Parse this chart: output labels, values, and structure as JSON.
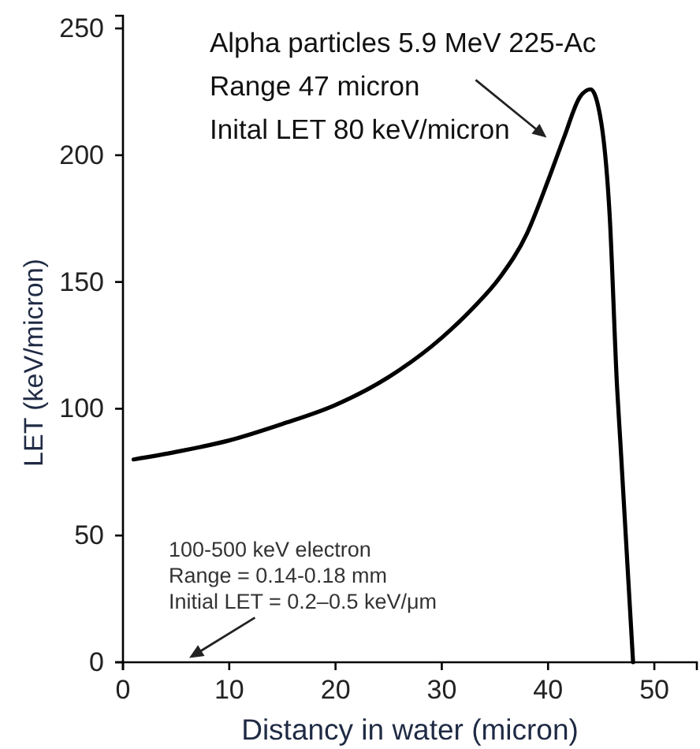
{
  "chart_data": {
    "type": "line",
    "xlabel": "Distancy in water (micron)",
    "ylabel": "LET (keV/micron)",
    "x": [
      1,
      5,
      10,
      15,
      20,
      25,
      30,
      33,
      35.5,
      38,
      40,
      41.5,
      43,
      44,
      45,
      45.8,
      46.5,
      46.8,
      48
    ],
    "values": [
      80,
      83,
      87.5,
      94,
      101.5,
      112.5,
      128,
      140,
      152,
      169,
      190,
      207,
      223,
      226,
      213,
      176,
      108,
      87,
      0
    ],
    "color": "#000000",
    "xlim": [
      0,
      54
    ],
    "ylim": [
      0,
      255
    ],
    "xticks": [
      0,
      10,
      20,
      30,
      40,
      50
    ],
    "yticks": [
      0,
      50,
      100,
      150,
      200,
      250
    ],
    "annotations": [
      "Alpha particles 5.9 MeV 225-Ac\nRange 47 micron\nInital LET 80 keV/micron",
      "100-500 keV electron\nRange = 0.14-0.18 mm\nInitial LET = 0.2–0.5 keV/μm"
    ]
  }
}
